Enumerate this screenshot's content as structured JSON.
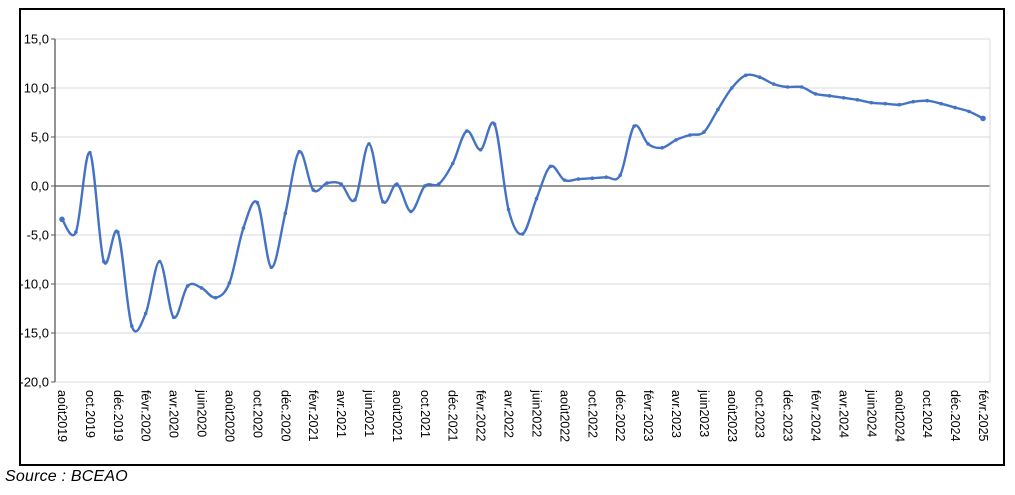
{
  "source": {
    "text": "Source : BCEAO"
  },
  "colors": {
    "series": "#4472C4",
    "gridline": "#d9d9d9",
    "axis": "#595959",
    "frame_border": "#000000",
    "background": "#ffffff",
    "label_text": "#000000"
  },
  "chart_data": {
    "type": "line",
    "title": "",
    "xlabel": "",
    "ylabel": "",
    "legend": "none",
    "grid": true,
    "smoothed": true,
    "markers": true,
    "ylim": [
      -20,
      15
    ],
    "y_tick_values": [
      15,
      10,
      5,
      0,
      -5,
      -10,
      -15,
      -20
    ],
    "y_tick_labels": [
      "15,0",
      "10,0",
      "5,0",
      "0,0",
      "-5,0",
      "-10,0",
      "-15,0",
      "-20,0"
    ],
    "x_tick_every": 2,
    "x_tick_labels": [
      "août2019",
      "oct.2019",
      "déc.2019",
      "févr.2020",
      "avr.2020",
      "juin2020",
      "août2020",
      "oct.2020",
      "déc.2020",
      "févr.2021",
      "avr.2021",
      "juin2021",
      "août2021",
      "oct.2021",
      "déc.2021",
      "févr.2022",
      "avr.2022",
      "juin2022",
      "août2022",
      "oct.2022",
      "déc.2022",
      "févr.2023",
      "avr.2023",
      "juin2023",
      "août2023",
      "oct.2023",
      "déc.2023",
      "févr.2024",
      "avr.2024",
      "juin2024",
      "août2024",
      "oct.2024",
      "déc.2024",
      "févr.2025"
    ],
    "values": [
      -3.4,
      -4.7,
      3.4,
      -7.7,
      -4.7,
      -14.3,
      -13.0,
      -7.7,
      -13.4,
      -10.2,
      -10.4,
      -11.4,
      -9.9,
      -4.3,
      -1.7,
      -8.3,
      -2.8,
      3.5,
      -0.4,
      0.3,
      0.2,
      -1.4,
      4.3,
      -1.6,
      0.2,
      -2.6,
      0.0,
      0.2,
      2.3,
      5.6,
      3.7,
      6.3,
      -2.4,
      -4.9,
      -1.3,
      2.0,
      0.6,
      0.7,
      0.8,
      0.9,
      1.1,
      6.1,
      4.3,
      3.9,
      4.7,
      5.2,
      5.5,
      7.8,
      10.0,
      11.3,
      11.1,
      10.4,
      10.1,
      10.1,
      9.4,
      9.2,
      9.0,
      8.8,
      8.5,
      8.4,
      8.3,
      8.6,
      8.7,
      8.4,
      8.0,
      7.6,
      6.9
    ]
  }
}
